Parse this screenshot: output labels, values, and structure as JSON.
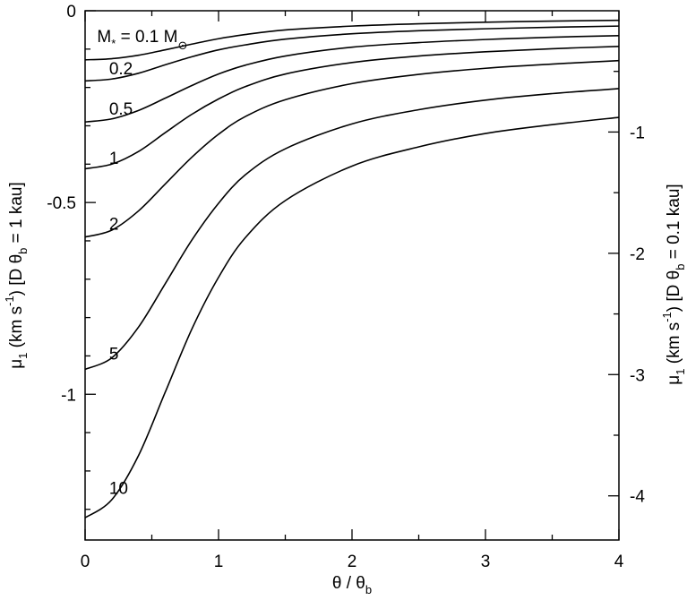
{
  "chart_data": {
    "type": "line",
    "xlabel": {
      "main": "θ / θ",
      "sub": "b"
    },
    "ylabel_left": {
      "mu": "μ",
      "mu_sub": "1",
      "units": " (km s",
      "units_sup": "-1",
      "bracket": ") [D θ",
      "theta_sub": "b",
      "tail": " = 1 kau]"
    },
    "ylabel_right": {
      "mu": "μ",
      "mu_sub": "1",
      "units": " (km s",
      "units_sup": "-1",
      "bracket": ") [D θ",
      "theta_sub": "b",
      "tail": " = 0.1 kau]"
    },
    "xlim": [
      0,
      4
    ],
    "ylim_left": [
      -1.38,
      0
    ],
    "ylim_right": [
      -4.364,
      0
    ],
    "x_ticks": [
      0,
      1,
      2,
      3,
      4
    ],
    "x_tick_labels": [
      "0",
      "1",
      "2",
      "3",
      "4"
    ],
    "y_left_ticks": [
      0,
      -0.5,
      -1
    ],
    "y_left_tick_labels": [
      "0",
      "-0.5",
      "-1"
    ],
    "y_right_ticks": [
      -1,
      -2,
      -3,
      -4
    ],
    "y_right_tick_labels": [
      "-1",
      "-2",
      "-3",
      "-4"
    ],
    "mass_label": {
      "lhs": "M",
      "lhs_sub": "*",
      "rhs": " = 0.1 M",
      "sun_symbol": "⊙"
    },
    "series": [
      {
        "label": "0.1",
        "x": [
          0,
          0.2,
          0.4,
          0.6,
          0.8,
          1.0,
          1.2,
          1.5,
          2.0,
          2.5,
          3.0,
          3.5,
          4.0
        ],
        "y": [
          -0.128,
          -0.125,
          -0.116,
          -0.102,
          -0.087,
          -0.073,
          -0.062,
          -0.05,
          -0.04,
          -0.034,
          -0.03,
          -0.027,
          -0.025
        ]
      },
      {
        "label": "0.2",
        "x": [
          0,
          0.2,
          0.4,
          0.6,
          0.8,
          1.0,
          1.2,
          1.5,
          2.0,
          2.5,
          3.0,
          3.5,
          4.0
        ],
        "y": [
          -0.183,
          -0.178,
          -0.163,
          -0.141,
          -0.12,
          -0.102,
          -0.089,
          -0.074,
          -0.06,
          -0.052,
          -0.047,
          -0.043,
          -0.04
        ]
      },
      {
        "label": "0.5",
        "x": [
          0,
          0.2,
          0.4,
          0.6,
          0.8,
          1.0,
          1.2,
          1.5,
          2.0,
          2.5,
          3.0,
          3.5,
          4.0
        ],
        "y": [
          -0.29,
          -0.282,
          -0.26,
          -0.228,
          -0.195,
          -0.165,
          -0.142,
          -0.118,
          -0.095,
          -0.083,
          -0.075,
          -0.069,
          -0.065
        ]
      },
      {
        "label": "1",
        "x": [
          0,
          0.2,
          0.4,
          0.6,
          0.8,
          1.0,
          1.2,
          1.5,
          2.0,
          2.5,
          3.0,
          3.5,
          4.0
        ],
        "y": [
          -0.412,
          -0.4,
          -0.367,
          -0.318,
          -0.27,
          -0.23,
          -0.198,
          -0.165,
          -0.135,
          -0.118,
          -0.107,
          -0.099,
          -0.093
        ]
      },
      {
        "label": "2",
        "x": [
          0,
          0.2,
          0.4,
          0.6,
          0.8,
          1.0,
          1.2,
          1.5,
          2.0,
          2.5,
          3.0,
          3.5,
          4.0
        ],
        "y": [
          -0.59,
          -0.572,
          -0.522,
          -0.452,
          -0.382,
          -0.322,
          -0.276,
          -0.232,
          -0.19,
          -0.166,
          -0.15,
          -0.139,
          -0.13
        ]
      },
      {
        "label": "5",
        "x": [
          0,
          0.2,
          0.4,
          0.6,
          0.8,
          1.0,
          1.2,
          1.5,
          2.0,
          2.5,
          3.0,
          3.5,
          4.0
        ],
        "y": [
          -0.935,
          -0.905,
          -0.825,
          -0.712,
          -0.598,
          -0.502,
          -0.428,
          -0.36,
          -0.295,
          -0.258,
          -0.233,
          -0.216,
          -0.203
        ]
      },
      {
        "label": "10",
        "x": [
          0,
          0.2,
          0.4,
          0.6,
          0.8,
          1.0,
          1.2,
          1.5,
          2.0,
          2.5,
          3.0,
          3.5,
          4.0
        ],
        "y": [
          -1.322,
          -1.275,
          -1.16,
          -0.995,
          -0.83,
          -0.695,
          -0.592,
          -0.495,
          -0.405,
          -0.355,
          -0.32,
          -0.297,
          -0.278
        ]
      }
    ]
  }
}
